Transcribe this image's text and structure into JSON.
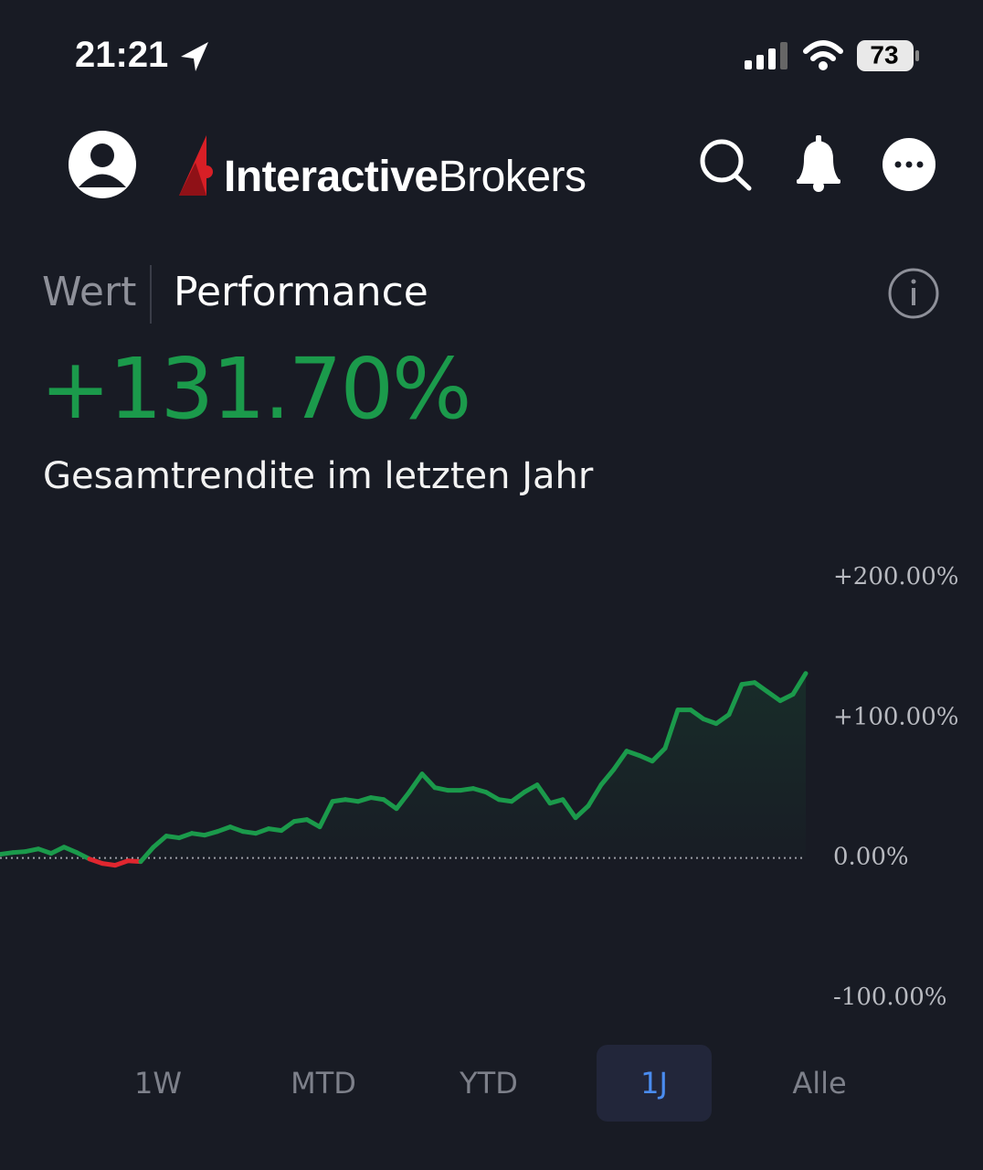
{
  "status_bar": {
    "time": "21:21",
    "battery": "73"
  },
  "header": {
    "brand_bold": "Interactive",
    "brand_regular": "Brokers"
  },
  "tabs": [
    "Wert",
    "Performance"
  ],
  "summary": {
    "value": "+131.70%",
    "caption": "Gesamtrendite im letzten Jahr"
  },
  "chart_data": {
    "type": "line",
    "series": [
      {
        "values": [
          2.6,
          3.9,
          4.6,
          6.5,
          3.3,
          7.8,
          3.9,
          -0.7,
          -3.9,
          -5.2,
          -2.0,
          -2.6,
          7.8,
          15.7,
          14.4,
          17.6,
          16.3,
          18.9,
          22.2,
          18.9,
          17.6,
          20.9,
          19.6,
          26.1,
          27.4,
          22.2,
          40.4,
          41.7,
          40.4,
          43.1,
          41.7,
          35.2,
          47.0,
          60.0,
          50.2,
          48.3,
          48.3,
          49.6,
          47.0,
          41.7,
          40.4,
          47.0,
          52.2,
          39.1,
          41.7,
          28.7,
          37.2,
          52.2,
          63.3,
          76.3,
          73.1,
          69.1,
          78.3,
          105.7,
          105.7,
          99.2,
          95.9,
          102.4,
          123.9,
          125.2,
          118.7,
          112.2,
          116.8,
          131.7
        ]
      }
    ],
    "positive_color": "#1b9a4b",
    "negative_color": "#e0262f",
    "ylim": [
      -100,
      200
    ],
    "yticks": [
      {
        "value": -100,
        "label": "-100.00%"
      },
      {
        "value": 0,
        "label": "0.00%"
      },
      {
        "value": 100,
        "label": "+100.00%"
      },
      {
        "value": 200,
        "label": "+200.00%"
      }
    ],
    "zero_line": true
  },
  "ranges": {
    "options": [
      "1W",
      "MTD",
      "YTD",
      "1J",
      "Alle"
    ],
    "selected": 3
  }
}
